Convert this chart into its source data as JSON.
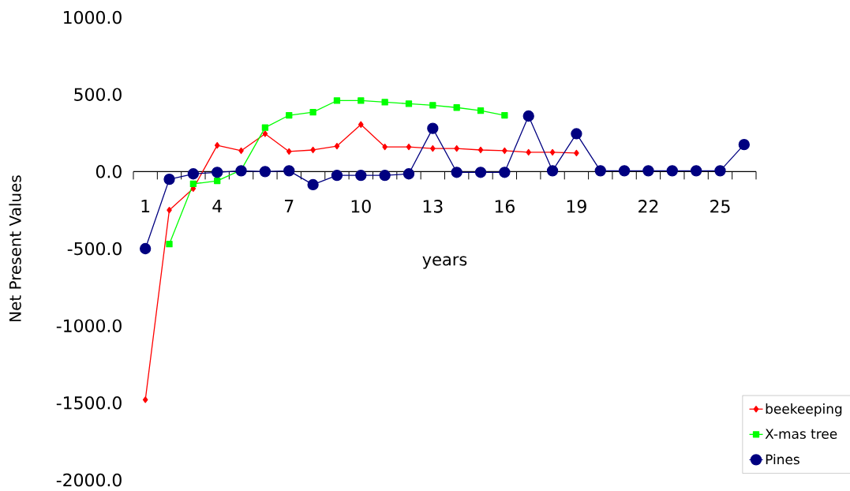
{
  "chart_data": {
    "type": "line",
    "xlabel": "years",
    "ylabel": "Net Present Values",
    "categories": [
      "1",
      null,
      null,
      "4",
      null,
      null,
      "7",
      null,
      null,
      "10",
      null,
      null,
      "13",
      null,
      null,
      "16",
      null,
      null,
      "19",
      null,
      null,
      "22",
      null,
      null,
      "25",
      null
    ],
    "series": [
      {
        "name": "beekeeping",
        "color": "#ff0000",
        "marker": "diamond",
        "values": [
          -1480,
          -250,
          -110,
          170,
          135,
          245,
          130,
          140,
          165,
          305,
          160,
          160,
          150,
          150,
          140,
          135,
          125,
          125,
          120,
          null,
          null,
          null,
          null,
          null,
          null,
          null
        ]
      },
      {
        "name": "X-mas tree",
        "color": "#00ff00",
        "marker": "square",
        "values": [
          null,
          -470,
          -80,
          -60,
          10,
          285,
          365,
          385,
          460,
          460,
          450,
          440,
          430,
          415,
          395,
          365,
          null,
          null,
          null,
          null,
          null,
          null,
          null,
          null,
          null,
          null
        ]
      },
      {
        "name": "Pines",
        "color": "#000080",
        "marker": "circle",
        "values": [
          -500,
          -50,
          -15,
          -5,
          5,
          0,
          5,
          -85,
          -25,
          -25,
          -25,
          -15,
          280,
          -5,
          -5,
          -5,
          360,
          5,
          245,
          5,
          5,
          5,
          5,
          5,
          5,
          175
        ]
      }
    ],
    "ylim": [
      -2000,
      1000
    ],
    "yticks": [
      {
        "value": -2000,
        "label": "-2000.0"
      },
      {
        "value": -1500,
        "label": "-1500.0"
      },
      {
        "value": -1000,
        "label": "-1000.0"
      },
      {
        "value": -500,
        "label": "-500.0"
      },
      {
        "value": 0,
        "label": "0.0"
      },
      {
        "value": 500,
        "label": "500.0"
      },
      {
        "value": 1000,
        "label": "1000.0"
      }
    ],
    "legend": "bottom right"
  }
}
